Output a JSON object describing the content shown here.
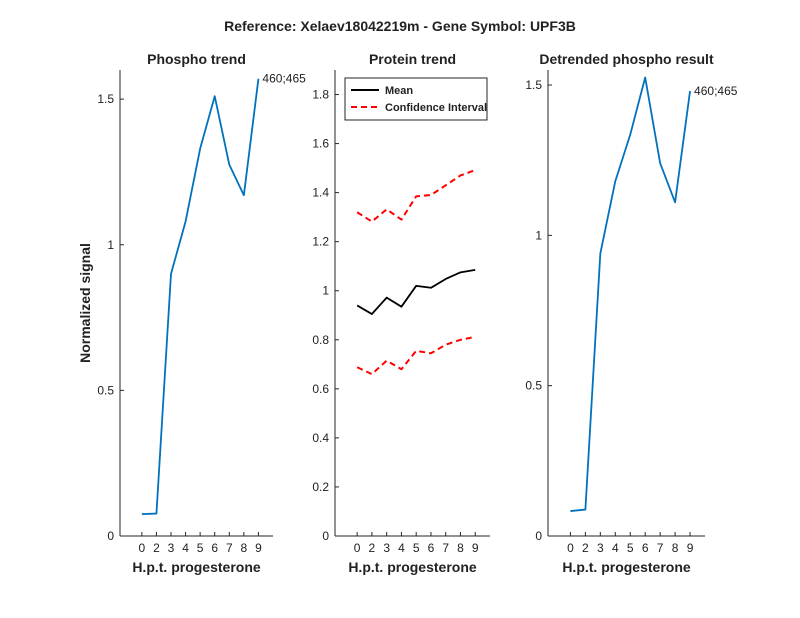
{
  "figure": {
    "title": "Reference:  Xelaev18042219m - Gene Symbol:  UPF3B"
  },
  "chart_data": [
    {
      "type": "line",
      "title": "Phospho trend",
      "xlabel": "H.p.t. progesterone",
      "ylabel": "Normalized signal",
      "xlim": [
        -0.5,
        10
      ],
      "ylim": [
        0,
        1.6
      ],
      "xticks": [
        0,
        2,
        3,
        4,
        5,
        6,
        7,
        8,
        9
      ],
      "xtick_positions": [
        1,
        2,
        3,
        4,
        5,
        6,
        7,
        8,
        9
      ],
      "yticks": [
        0,
        0.5,
        1,
        1.5
      ],
      "ytick_labels": [
        "0",
        "0.5",
        "1",
        "1.5"
      ],
      "x": [
        1,
        2,
        3,
        4,
        5,
        6,
        7,
        8,
        9
      ],
      "series": [
        {
          "color": "#0072BD",
          "dash": "",
          "values": [
            0.075,
            0.077,
            0.9,
            1.08,
            1.33,
            1.51,
            1.275,
            1.17,
            1.57
          ]
        }
      ],
      "annotation": {
        "text": "460;465",
        "x": 9,
        "y": 1.57
      }
    },
    {
      "type": "line",
      "title": "Protein trend",
      "xlabel": "H.p.t. progesterone",
      "ylabel": "",
      "xlim": [
        -0.5,
        10
      ],
      "ylim": [
        0,
        1.9
      ],
      "xticks": [
        0,
        2,
        3,
        4,
        5,
        6,
        7,
        8,
        9
      ],
      "xtick_positions": [
        1,
        2,
        3,
        4,
        5,
        6,
        7,
        8,
        9
      ],
      "yticks": [
        0,
        0.2,
        0.4,
        0.6,
        0.8,
        1,
        1.2,
        1.4,
        1.6,
        1.8
      ],
      "ytick_labels": [
        "0",
        "0.2",
        "0.4",
        "0.6",
        "0.8",
        "1",
        "1.2",
        "1.4",
        "1.6",
        "1.8"
      ],
      "x": [
        1,
        2,
        3,
        4,
        5,
        6,
        7,
        8,
        9
      ],
      "series": [
        {
          "name": "Mean",
          "color": "#000000",
          "dash": "",
          "values": [
            0.94,
            0.905,
            0.972,
            0.935,
            1.02,
            1.012,
            1.048,
            1.075,
            1.085
          ]
        },
        {
          "name": "Confidence Interval",
          "color": "#FF0000",
          "dash": "6,4",
          "values": [
            1.32,
            1.282,
            1.332,
            1.29,
            1.385,
            1.39,
            1.43,
            1.47,
            1.492
          ]
        },
        {
          "color": "#FF0000",
          "dash": "6,4",
          "values": [
            0.688,
            0.66,
            0.715,
            0.68,
            0.755,
            0.745,
            0.78,
            0.8,
            0.812
          ]
        }
      ],
      "legend": {
        "placement": "top-left",
        "entries": [
          {
            "label": "Mean",
            "color": "#000000",
            "dash": ""
          },
          {
            "label": "Confidence Interval",
            "color": "#FF0000",
            "dash": "6,4"
          }
        ]
      }
    },
    {
      "type": "line",
      "title": "Detrended phospho result",
      "xlabel": "H.p.t. progesterone",
      "ylabel": "",
      "xlim": [
        -0.5,
        10
      ],
      "ylim": [
        0,
        1.55
      ],
      "xticks": [
        0,
        2,
        3,
        4,
        5,
        6,
        7,
        8,
        9
      ],
      "xtick_positions": [
        1,
        2,
        3,
        4,
        5,
        6,
        7,
        8,
        9
      ],
      "yticks": [
        0,
        0.5,
        1,
        1.5
      ],
      "ytick_labels": [
        "0",
        "0.5",
        "1",
        "1.5"
      ],
      "x": [
        1,
        2,
        3,
        4,
        5,
        6,
        7,
        8,
        9
      ],
      "series": [
        {
          "color": "#0072BD",
          "dash": "",
          "values": [
            0.083,
            0.088,
            0.94,
            1.18,
            1.335,
            1.525,
            1.24,
            1.11,
            1.48
          ]
        }
      ],
      "annotation": {
        "text": "460;465",
        "x": 9,
        "y": 1.48
      }
    }
  ]
}
